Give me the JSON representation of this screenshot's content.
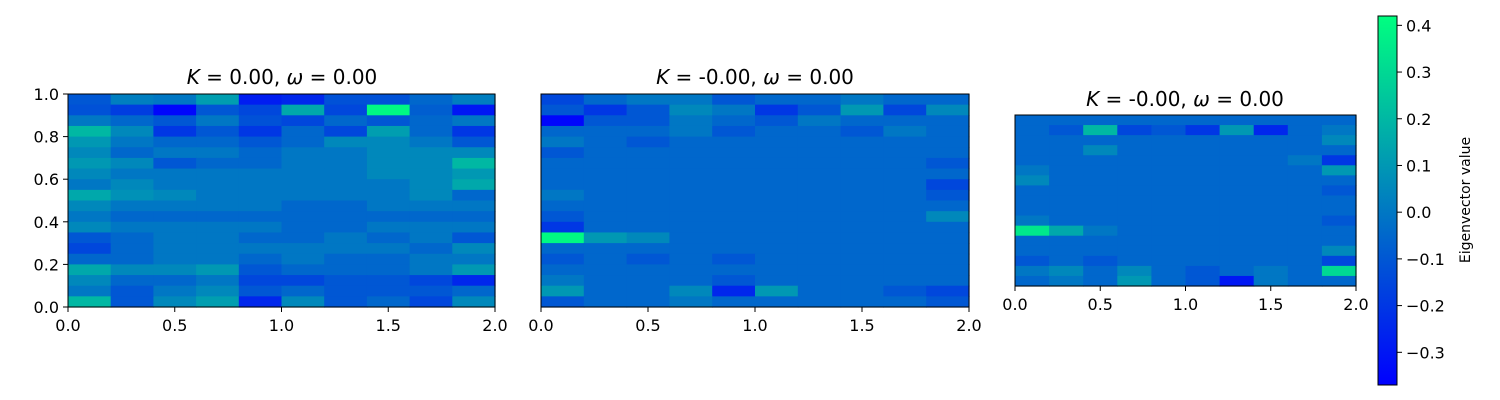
{
  "figure": {
    "colormap": {
      "name": "winter",
      "low": "#0000ff",
      "high": "#00ff80"
    },
    "colorbar": {
      "label": "Eigenvector value",
      "min": -0.37,
      "max": 0.42,
      "ticks": [
        "-0.3",
        "-0.2",
        "-0.1",
        "0.0",
        "0.1",
        "0.2",
        "0.3",
        "0.4"
      ],
      "tick_values": [
        -0.3,
        -0.2,
        -0.1,
        0.0,
        0.1,
        0.2,
        0.3,
        0.4
      ]
    }
  },
  "chart_data": [
    {
      "type": "heatmap",
      "title": "K = 0.00, ω = 0.00",
      "title_parts": {
        "k_sym": "K",
        "k_rest": " = 0.00, ",
        "w_sym": "ω",
        "w_rest": " = 0.00"
      },
      "xlabel": "",
      "ylabel": "",
      "xlim": [
        0.0,
        2.0
      ],
      "ylim": [
        0.0,
        1.0
      ],
      "xticks": [
        "0.0",
        "0.5",
        "1.0",
        "1.5",
        "2.0"
      ],
      "yticks": [
        "0.0",
        "0.2",
        "0.4",
        "0.6",
        "0.8",
        "1.0"
      ],
      "grid": false,
      "cols": 10,
      "rows": 20,
      "values": [
        [
          -0.1,
          0.02,
          0.0,
          0.12,
          -0.28,
          -0.25,
          -0.12,
          -0.12,
          -0.05,
          0.02
        ],
        [
          -0.12,
          -0.18,
          -0.35,
          -0.1,
          -0.15,
          0.15,
          -0.15,
          0.4,
          -0.08,
          -0.3
        ],
        [
          0.0,
          -0.05,
          -0.1,
          0.0,
          -0.12,
          -0.15,
          -0.05,
          -0.1,
          -0.05,
          0.0
        ],
        [
          0.2,
          0.05,
          -0.2,
          -0.1,
          -0.2,
          -0.05,
          -0.15,
          0.12,
          -0.05,
          -0.2
        ],
        [
          0.1,
          0.0,
          -0.05,
          -0.05,
          -0.1,
          -0.05,
          0.05,
          0.05,
          0.0,
          -0.1
        ],
        [
          0.05,
          -0.05,
          0.0,
          0.0,
          -0.05,
          0.0,
          0.0,
          0.05,
          0.05,
          0.05
        ],
        [
          0.1,
          0.05,
          -0.1,
          -0.05,
          -0.05,
          0.0,
          0.0,
          0.05,
          0.05,
          0.2
        ],
        [
          0.05,
          0.0,
          0.0,
          0.0,
          0.0,
          0.0,
          0.0,
          0.05,
          0.05,
          0.1
        ],
        [
          0.0,
          0.05,
          0.0,
          0.0,
          0.0,
          0.0,
          0.0,
          0.0,
          0.05,
          0.15
        ],
        [
          0.15,
          0.08,
          0.05,
          0.0,
          0.0,
          0.0,
          0.0,
          0.0,
          0.05,
          -0.05
        ],
        [
          0.05,
          0.0,
          0.0,
          0.0,
          0.0,
          -0.05,
          -0.05,
          0.0,
          0.0,
          0.0
        ],
        [
          0.0,
          -0.05,
          -0.05,
          -0.05,
          -0.05,
          -0.05,
          -0.05,
          -0.05,
          -0.05,
          -0.05
        ],
        [
          0.05,
          0.0,
          0.0,
          0.0,
          0.0,
          -0.05,
          -0.05,
          0.0,
          0.0,
          0.0
        ],
        [
          -0.1,
          -0.05,
          0.0,
          0.0,
          -0.05,
          -0.05,
          0.0,
          -0.05,
          0.0,
          -0.1
        ],
        [
          -0.15,
          -0.05,
          0.0,
          0.0,
          0.0,
          0.0,
          0.0,
          0.0,
          -0.05,
          0.05
        ],
        [
          -0.05,
          -0.05,
          0.0,
          0.0,
          -0.05,
          0.0,
          -0.05,
          -0.05,
          0.0,
          0.0
        ],
        [
          0.15,
          0.05,
          0.05,
          0.1,
          -0.1,
          -0.05,
          -0.05,
          -0.05,
          0.0,
          0.1
        ],
        [
          0.05,
          -0.05,
          -0.05,
          0.0,
          -0.15,
          -0.15,
          -0.1,
          -0.1,
          -0.15,
          -0.25
        ],
        [
          0.0,
          -0.1,
          0.0,
          0.05,
          -0.1,
          -0.05,
          -0.1,
          -0.1,
          -0.1,
          -0.05
        ],
        [
          0.2,
          -0.1,
          0.05,
          0.12,
          -0.25,
          0.05,
          -0.1,
          -0.05,
          -0.15,
          0.05
        ]
      ]
    },
    {
      "type": "heatmap",
      "title": "K = -0.00, ω = 0.00",
      "title_parts": {
        "k_sym": "K",
        "k_rest": " = -0.00, ",
        "w_sym": "ω",
        "w_rest": " = 0.00"
      },
      "xlabel": "",
      "ylabel": "",
      "xlim": [
        0.0,
        2.0
      ],
      "ylim": [
        0.0,
        1.0
      ],
      "xticks": [
        "0.0",
        "0.5",
        "1.0",
        "1.5",
        "2.0"
      ],
      "yticks": [],
      "grid": false,
      "cols": 10,
      "rows": 20,
      "values": [
        [
          -0.15,
          -0.05,
          0.0,
          0.0,
          -0.1,
          -0.05,
          -0.05,
          0.0,
          -0.05,
          -0.05
        ],
        [
          -0.1,
          -0.2,
          -0.1,
          0.05,
          0.0,
          -0.2,
          -0.1,
          0.1,
          -0.15,
          0.05
        ],
        [
          -0.35,
          -0.1,
          -0.1,
          0.0,
          -0.05,
          -0.1,
          0.0,
          -0.05,
          -0.05,
          -0.05
        ],
        [
          -0.05,
          -0.05,
          -0.05,
          0.0,
          -0.1,
          -0.05,
          -0.05,
          -0.1,
          0.0,
          -0.05
        ],
        [
          0.0,
          -0.05,
          -0.1,
          -0.05,
          -0.05,
          -0.05,
          -0.05,
          -0.05,
          -0.05,
          -0.05
        ],
        [
          -0.1,
          -0.05,
          -0.05,
          -0.05,
          -0.05,
          -0.05,
          -0.05,
          -0.05,
          -0.05,
          -0.05
        ],
        [
          -0.05,
          -0.05,
          -0.05,
          -0.05,
          -0.05,
          -0.05,
          -0.05,
          -0.05,
          -0.05,
          -0.1
        ],
        [
          -0.05,
          -0.05,
          -0.05,
          -0.05,
          -0.05,
          -0.05,
          -0.05,
          -0.05,
          -0.05,
          -0.05
        ],
        [
          -0.05,
          -0.05,
          -0.05,
          -0.05,
          -0.05,
          -0.05,
          -0.05,
          -0.05,
          -0.05,
          -0.15
        ],
        [
          0.0,
          -0.05,
          -0.05,
          -0.05,
          -0.05,
          -0.05,
          -0.05,
          -0.05,
          -0.05,
          -0.1
        ],
        [
          -0.05,
          -0.05,
          -0.05,
          -0.05,
          -0.05,
          -0.05,
          -0.05,
          -0.05,
          -0.05,
          -0.05
        ],
        [
          -0.1,
          -0.05,
          -0.05,
          -0.05,
          -0.05,
          -0.05,
          -0.05,
          -0.05,
          -0.05,
          0.05
        ],
        [
          -0.2,
          -0.05,
          -0.05,
          -0.05,
          -0.05,
          -0.05,
          -0.05,
          -0.05,
          -0.05,
          -0.05
        ],
        [
          0.4,
          0.1,
          0.05,
          -0.05,
          -0.05,
          -0.05,
          -0.05,
          -0.05,
          -0.05,
          -0.05
        ],
        [
          -0.05,
          -0.05,
          -0.05,
          -0.05,
          -0.05,
          -0.05,
          -0.05,
          -0.05,
          -0.05,
          -0.05
        ],
        [
          -0.1,
          -0.05,
          -0.1,
          -0.05,
          -0.1,
          -0.05,
          -0.05,
          -0.05,
          -0.05,
          -0.05
        ],
        [
          -0.05,
          -0.05,
          -0.05,
          -0.05,
          -0.05,
          -0.05,
          -0.05,
          -0.05,
          -0.05,
          -0.05
        ],
        [
          0.0,
          -0.05,
          -0.05,
          -0.05,
          -0.1,
          -0.05,
          -0.05,
          -0.05,
          -0.05,
          -0.05
        ],
        [
          0.1,
          -0.05,
          -0.05,
          0.05,
          -0.25,
          0.1,
          -0.05,
          -0.05,
          -0.1,
          -0.15
        ],
        [
          -0.1,
          -0.05,
          -0.05,
          0.0,
          -0.05,
          -0.05,
          -0.05,
          -0.05,
          -0.05,
          -0.1
        ]
      ]
    },
    {
      "type": "heatmap",
      "title": "K = -0.00, ω = 0.00",
      "title_parts": {
        "k_sym": "K",
        "k_rest": " = -0.00, ",
        "w_sym": "ω",
        "w_rest": " = 0.00"
      },
      "xlabel": "",
      "ylabel": "",
      "xlim": [
        0.0,
        2.0
      ],
      "ylim": [
        0.0,
        1.0
      ],
      "xticks": [
        "0.0",
        "0.5",
        "1.0",
        "1.5",
        "2.0"
      ],
      "yticks": [],
      "grid": false,
      "cols": 10,
      "rows": 17,
      "values": [
        [
          -0.05,
          -0.05,
          -0.05,
          -0.05,
          -0.05,
          -0.05,
          -0.05,
          -0.05,
          -0.05,
          -0.05
        ],
        [
          -0.05,
          -0.1,
          0.2,
          -0.15,
          -0.1,
          -0.2,
          0.1,
          -0.25,
          -0.05,
          0.0
        ],
        [
          -0.05,
          -0.05,
          -0.05,
          -0.05,
          -0.05,
          -0.05,
          -0.05,
          -0.05,
          -0.05,
          0.05
        ],
        [
          -0.05,
          -0.05,
          0.05,
          -0.05,
          -0.05,
          -0.05,
          -0.05,
          -0.05,
          -0.05,
          -0.05
        ],
        [
          -0.05,
          -0.05,
          -0.05,
          -0.05,
          -0.05,
          -0.05,
          -0.05,
          -0.05,
          0.0,
          -0.2
        ],
        [
          0.0,
          -0.05,
          -0.05,
          -0.05,
          -0.05,
          -0.05,
          -0.05,
          -0.05,
          -0.05,
          0.1
        ],
        [
          0.05,
          -0.05,
          -0.05,
          -0.05,
          -0.05,
          -0.05,
          -0.05,
          -0.05,
          -0.05,
          -0.05
        ],
        [
          -0.05,
          -0.05,
          -0.05,
          -0.05,
          -0.05,
          -0.05,
          -0.05,
          -0.05,
          -0.05,
          -0.1
        ],
        [
          -0.05,
          -0.05,
          -0.05,
          -0.05,
          -0.05,
          -0.05,
          -0.05,
          -0.05,
          -0.05,
          -0.05
        ],
        [
          -0.05,
          -0.05,
          -0.05,
          -0.05,
          -0.05,
          -0.05,
          -0.05,
          -0.05,
          -0.05,
          -0.05
        ],
        [
          0.0,
          -0.05,
          -0.05,
          -0.05,
          -0.05,
          -0.05,
          -0.05,
          -0.05,
          -0.05,
          -0.1
        ],
        [
          0.35,
          0.15,
          0.0,
          -0.05,
          -0.05,
          -0.05,
          -0.05,
          -0.05,
          -0.05,
          -0.05
        ],
        [
          -0.05,
          -0.05,
          -0.05,
          -0.05,
          -0.05,
          -0.05,
          -0.05,
          -0.05,
          -0.05,
          -0.05
        ],
        [
          -0.05,
          -0.05,
          -0.05,
          -0.05,
          -0.05,
          -0.05,
          -0.05,
          -0.05,
          -0.05,
          0.05
        ],
        [
          -0.1,
          -0.05,
          -0.1,
          -0.05,
          -0.05,
          -0.05,
          -0.05,
          -0.05,
          -0.05,
          -0.15
        ],
        [
          0.0,
          0.05,
          -0.05,
          0.05,
          -0.05,
          -0.1,
          -0.05,
          0.0,
          -0.05,
          0.3
        ],
        [
          -0.05,
          0.0,
          -0.05,
          0.1,
          -0.05,
          -0.1,
          -0.3,
          0.0,
          -0.05,
          -0.05
        ]
      ]
    }
  ]
}
